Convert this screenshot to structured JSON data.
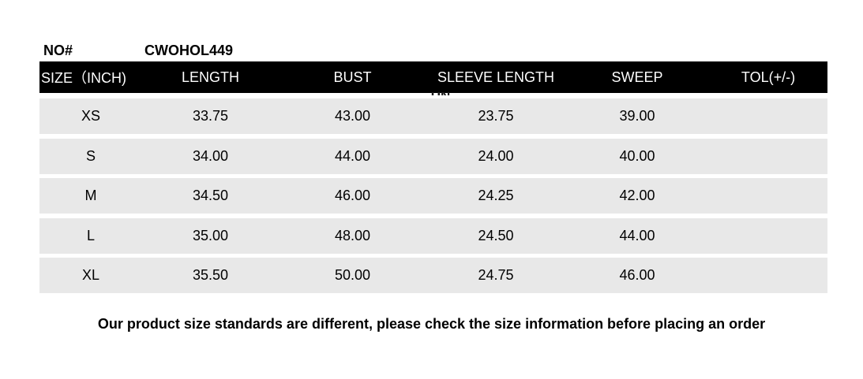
{
  "product": {
    "no_label": "NO#",
    "no_value": "CWOHOL449"
  },
  "table": {
    "columns": [
      "SIZE（INCH)",
      "LENGTH",
      "BUST",
      "SLEEVE LENGTH",
      "SWEEP",
      "TOL(+/-)"
    ],
    "clipped_fragment": "UN",
    "rows": [
      {
        "size": "XS",
        "length": "33.75",
        "bust": "43.00",
        "sleeve_length": "23.75",
        "sweep": "39.00",
        "tol": ""
      },
      {
        "size": "S",
        "length": "34.00",
        "bust": "44.00",
        "sleeve_length": "24.00",
        "sweep": "40.00",
        "tol": ""
      },
      {
        "size": "M",
        "length": "34.50",
        "bust": "46.00",
        "sleeve_length": "24.25",
        "sweep": "42.00",
        "tol": ""
      },
      {
        "size": "L",
        "length": "35.00",
        "bust": "48.00",
        "sleeve_length": "24.50",
        "sweep": "44.00",
        "tol": ""
      },
      {
        "size": "XL",
        "length": "35.50",
        "bust": "50.00",
        "sleeve_length": "24.75",
        "sweep": "46.00",
        "tol": ""
      }
    ]
  },
  "footer": {
    "note": "Our product size standards are different, please check the size information before placing an order"
  },
  "colors": {
    "header_bg": "#000000",
    "header_text": "#ffffff",
    "row_bg": "#e8e8e8",
    "text": "#000000",
    "page_bg": "#ffffff"
  }
}
